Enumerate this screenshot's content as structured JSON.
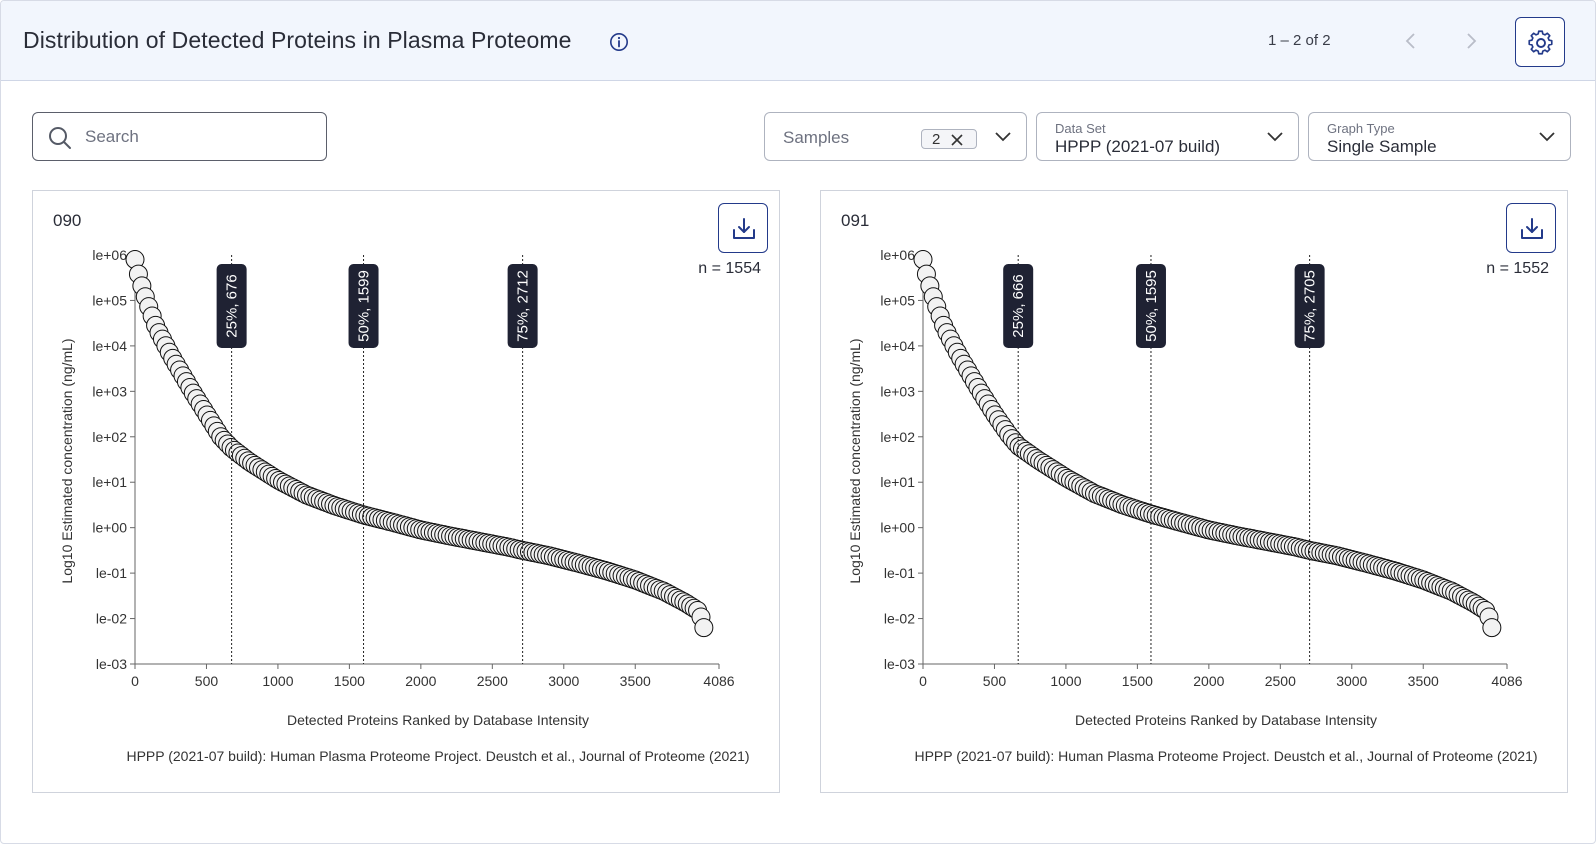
{
  "header": {
    "title": "Distribution of Detected Proteins in Plasma Proteome",
    "pagination": "1 – 2 of 2"
  },
  "colors": {
    "accent": "#233a8a",
    "header_bg": "#f2f6fd",
    "badge_bg": "#1f2233",
    "point_fill": "#f2f2f2",
    "point_stroke": "#111111"
  },
  "icons": {
    "info": "info-icon",
    "prev": "chevron-left-icon",
    "next": "chevron-right-icon",
    "settings": "gear-icon",
    "search": "search-icon",
    "download": "download-icon",
    "chevron": "chevron-down-icon",
    "chip_remove": "close-icon"
  },
  "filters": {
    "search_placeholder": "Search",
    "samples": {
      "label": "Samples",
      "count": "2"
    },
    "data_set": {
      "label": "Data Set",
      "value": "HPPP (2021-07 build)"
    },
    "graph_type": {
      "label": "Graph Type",
      "value": "Single Sample"
    }
  },
  "chart_data": [
    {
      "type": "scatter",
      "panel_title": "090",
      "n_label": "n = 1554",
      "xlabel": "Detected Proteins Ranked by Database Intensity",
      "ylabel": "Log10 Estimated concentration (ng/mL)",
      "caption": "HPPP (2021-07 build): Human Plasma Proteome Project. Deustch et al., Journal of Proteome (2021)",
      "xlim": [
        0,
        4086
      ],
      "x_ticks": [
        0,
        500,
        1000,
        1500,
        2000,
        2500,
        3000,
        3500,
        4086
      ],
      "y_scale": "log10",
      "ylim": [
        -3,
        6
      ],
      "y_ticks": [
        6,
        5,
        4,
        3,
        2,
        1,
        0,
        -1,
        -2,
        -3
      ],
      "y_tick_labels": [
        "le+06",
        "le+05",
        "le+04",
        "le+03",
        "le+02",
        "le+01",
        "le+00",
        "le-01",
        "le-02",
        "le-03"
      ],
      "quantile_lines": [
        {
          "x": 676,
          "label": "25%, 676"
        },
        {
          "x": 1599,
          "label": "50%, 1599"
        },
        {
          "x": 2712,
          "label": "75%, 2712"
        }
      ],
      "curve": {
        "x": [
          0,
          30,
          80,
          150,
          250,
          400,
          500,
          600,
          676,
          800,
          1000,
          1200,
          1400,
          1599,
          1800,
          2000,
          2200,
          2400,
          2600,
          2712,
          2900,
          3100,
          3300,
          3500,
          3700,
          3850,
          3950,
          3980
        ],
        "log10_y": [
          5.9,
          5.5,
          5.0,
          4.4,
          3.8,
          3.0,
          2.5,
          2.0,
          1.75,
          1.45,
          1.05,
          0.72,
          0.48,
          0.28,
          0.12,
          -0.05,
          -0.18,
          -0.3,
          -0.42,
          -0.5,
          -0.62,
          -0.78,
          -0.95,
          -1.15,
          -1.4,
          -1.65,
          -1.85,
          -2.2
        ]
      }
    },
    {
      "type": "scatter",
      "panel_title": "091",
      "n_label": "n = 1552",
      "xlabel": "Detected Proteins Ranked by Database Intensity",
      "ylabel": "Log10 Estimated concentration (ng/mL)",
      "caption": "HPPP (2021-07 build): Human Plasma Proteome Project. Deustch et al., Journal of Proteome (2021)",
      "xlim": [
        0,
        4086
      ],
      "x_ticks": [
        0,
        500,
        1000,
        1500,
        2000,
        2500,
        3000,
        3500,
        4086
      ],
      "y_scale": "log10",
      "ylim": [
        -3,
        6
      ],
      "y_ticks": [
        6,
        5,
        4,
        3,
        2,
        1,
        0,
        -1,
        -2,
        -3
      ],
      "y_tick_labels": [
        "le+06",
        "le+05",
        "le+04",
        "le+03",
        "le+02",
        "le+01",
        "le+00",
        "le-01",
        "le-02",
        "le-03"
      ],
      "quantile_lines": [
        {
          "x": 666,
          "label": "25%, 666"
        },
        {
          "x": 1595,
          "label": "50%, 1595"
        },
        {
          "x": 2705,
          "label": "75%, 2705"
        }
      ],
      "curve": {
        "x": [
          0,
          30,
          80,
          150,
          250,
          400,
          500,
          600,
          666,
          800,
          1000,
          1200,
          1400,
          1595,
          1800,
          2000,
          2200,
          2400,
          2600,
          2705,
          2900,
          3100,
          3300,
          3500,
          3700,
          3850,
          3950,
          3980
        ],
        "log10_y": [
          5.9,
          5.5,
          5.0,
          4.4,
          3.8,
          3.0,
          2.5,
          2.05,
          1.8,
          1.5,
          1.1,
          0.75,
          0.5,
          0.3,
          0.12,
          -0.05,
          -0.18,
          -0.3,
          -0.42,
          -0.5,
          -0.62,
          -0.78,
          -0.95,
          -1.15,
          -1.4,
          -1.65,
          -1.85,
          -2.2
        ]
      }
    }
  ]
}
